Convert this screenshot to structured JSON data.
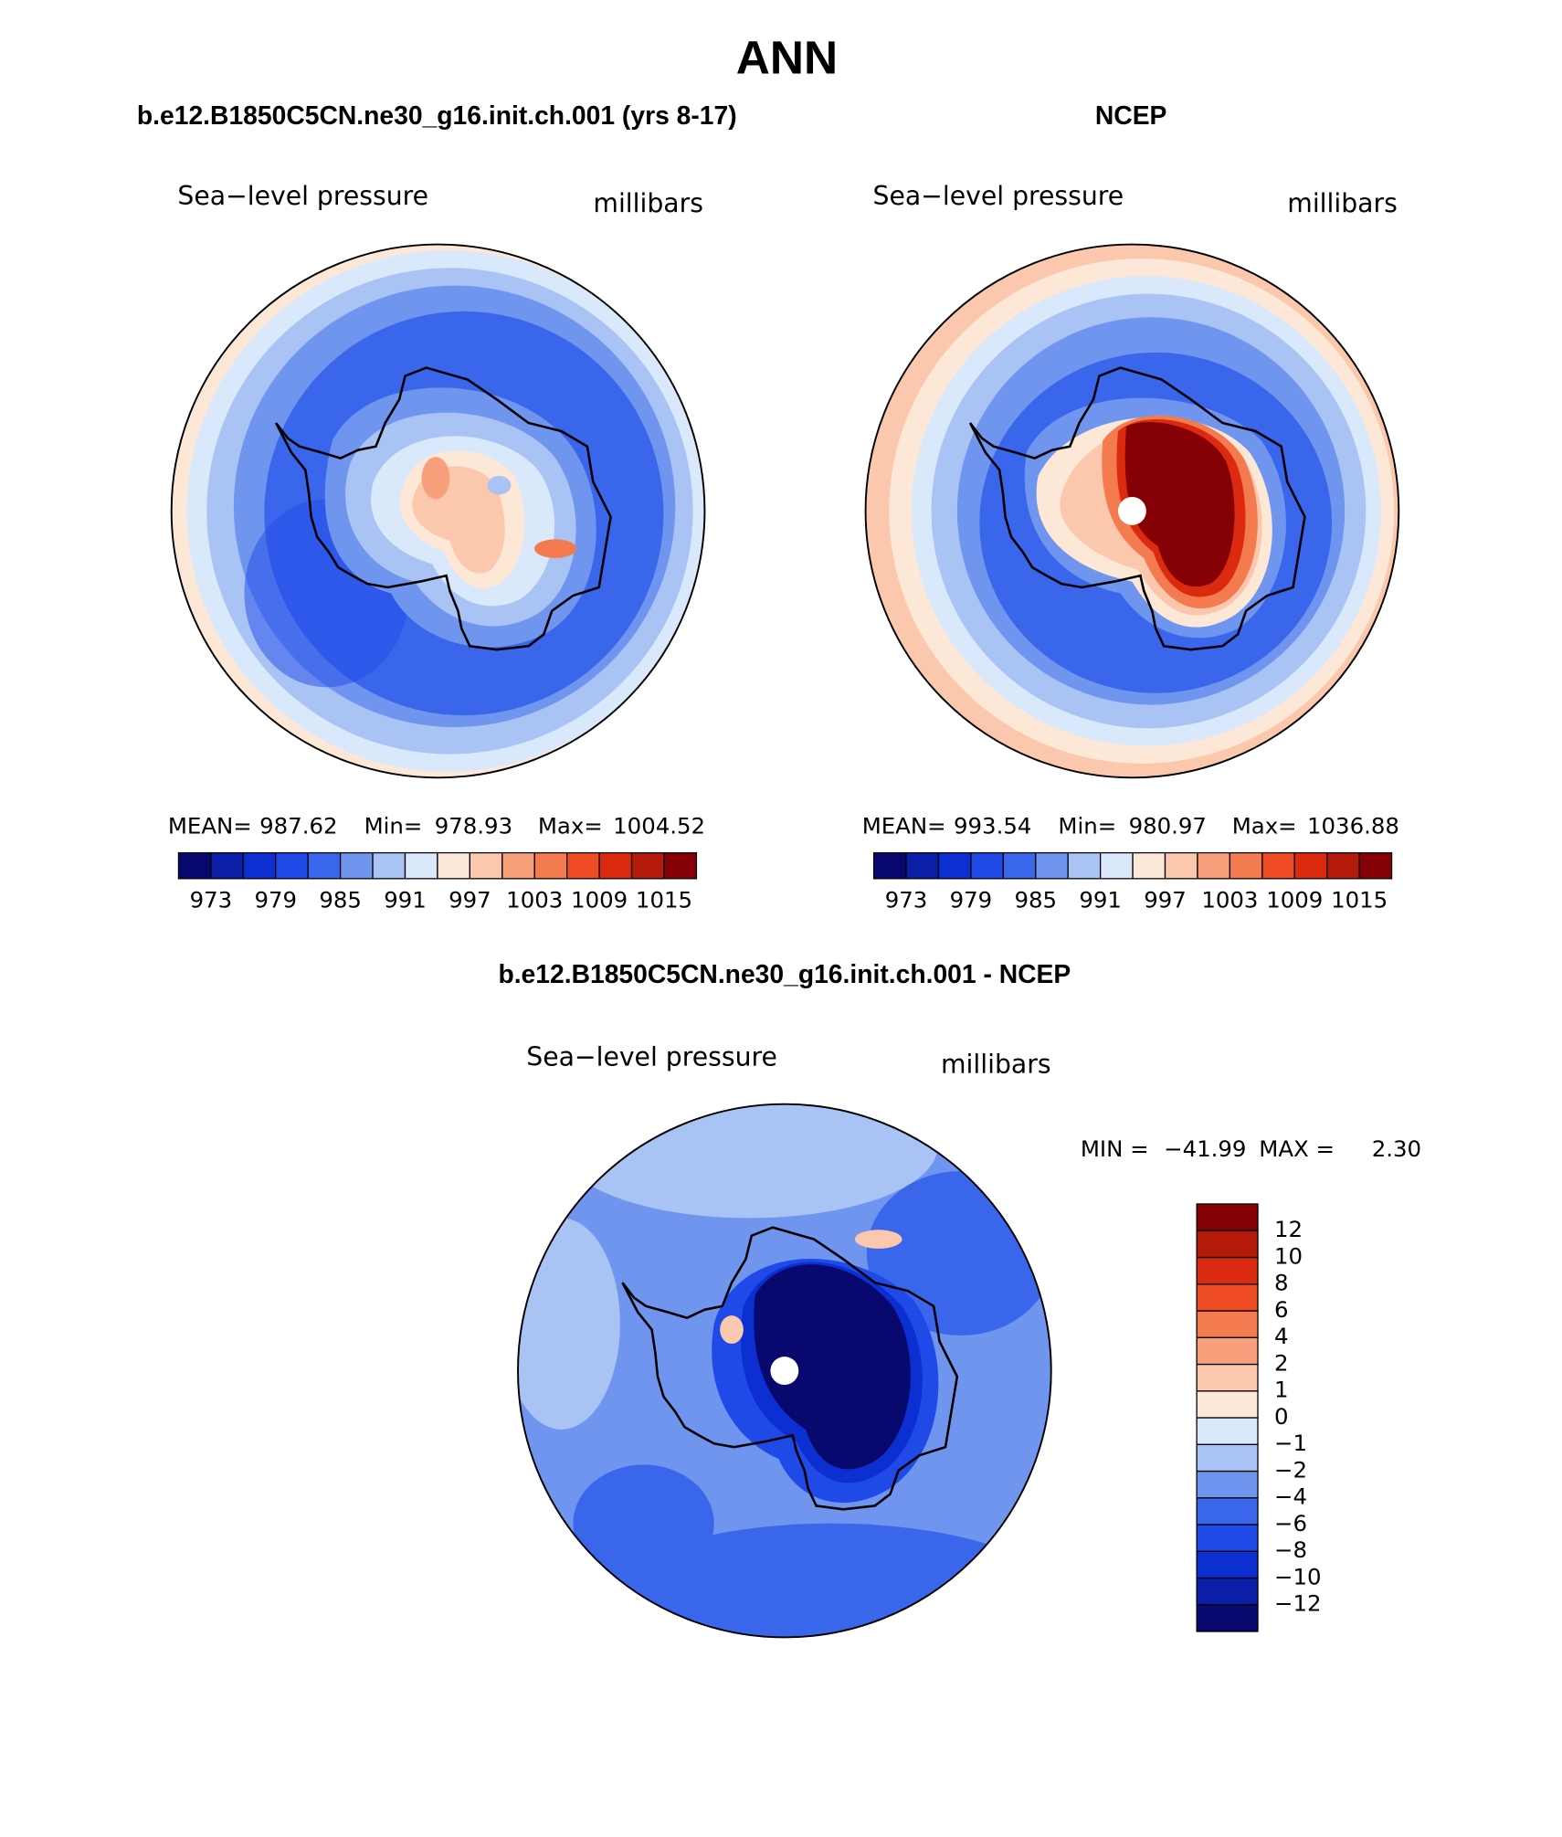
{
  "title": "ANN",
  "panels": [
    {
      "title": "b.e12.B1850C5CN.ne30_g16.init.ch.001 (yrs 8-17)",
      "variable": "Sea−level pressure",
      "units": "millibars",
      "stats": [
        {
          "label": "MEAN=",
          "value": "987.62"
        },
        {
          "label": "Min=",
          "value": "978.93"
        },
        {
          "label": "Max=",
          "value": "1004.52"
        }
      ],
      "colorbar": {
        "lim": [
          970,
          1018
        ],
        "ticks": [
          973,
          979,
          985,
          991,
          997,
          1003,
          1009,
          1015
        ],
        "colors": [
          "#08086e",
          "#0a1ea8",
          "#0b2fd1",
          "#1f4ae8",
          "#3a66ec",
          "#6f95ef",
          "#a9c3f4",
          "#d9e8fb",
          "#fde8d8",
          "#fbc8ae",
          "#f8a07c",
          "#f47a4f",
          "#ee4b24",
          "#db2a0f",
          "#b41a0a",
          "#850004"
        ]
      }
    },
    {
      "title": "NCEP",
      "variable": "Sea−level pressure",
      "units": "millibars",
      "stats": [
        {
          "label": "MEAN=",
          "value": "993.54"
        },
        {
          "label": "Min=",
          "value": "980.97"
        },
        {
          "label": "Max=",
          "value": "1036.88"
        }
      ],
      "colorbar": {
        "lim": [
          970,
          1018
        ],
        "ticks": [
          973,
          979,
          985,
          991,
          997,
          1003,
          1009,
          1015
        ],
        "colors": [
          "#08086e",
          "#0a1ea8",
          "#0b2fd1",
          "#1f4ae8",
          "#3a66ec",
          "#6f95ef",
          "#a9c3f4",
          "#d9e8fb",
          "#fde8d8",
          "#fbc8ae",
          "#f8a07c",
          "#f47a4f",
          "#ee4b24",
          "#db2a0f",
          "#b41a0a",
          "#850004"
        ]
      }
    },
    {
      "title": "b.e12.B1850C5CN.ne30_g16.init.ch.001 - NCEP",
      "variable": "Sea−level pressure",
      "units": "millibars",
      "stats": [
        {
          "label": "MIN =",
          "value": "−41.99"
        },
        {
          "label": "MAX =",
          "value": "2.30"
        }
      ],
      "colorbar": {
        "ticks": [
          {
            "value": -12,
            "label": "−12"
          },
          {
            "value": -10,
            "label": "−10"
          },
          {
            "value": -8,
            "label": "−8"
          },
          {
            "value": -6,
            "label": "−6"
          },
          {
            "value": -4,
            "label": "−4"
          },
          {
            "value": -2,
            "label": "−2"
          },
          {
            "value": -1,
            "label": "−1"
          },
          0,
          1,
          2,
          4,
          6,
          8,
          10,
          12
        ],
        "colors": [
          "#08086e",
          "#0a1ea8",
          "#0b2fd1",
          "#1f4ae8",
          "#3a66ec",
          "#6f95ef",
          "#a9c3f4",
          "#d9e8fb",
          "#fde8d8",
          "#fbc8ae",
          "#f8a07c",
          "#f47a4f",
          "#ee4b24",
          "#db2a0f",
          "#b41a0a",
          "#850004"
        ]
      }
    }
  ]
}
